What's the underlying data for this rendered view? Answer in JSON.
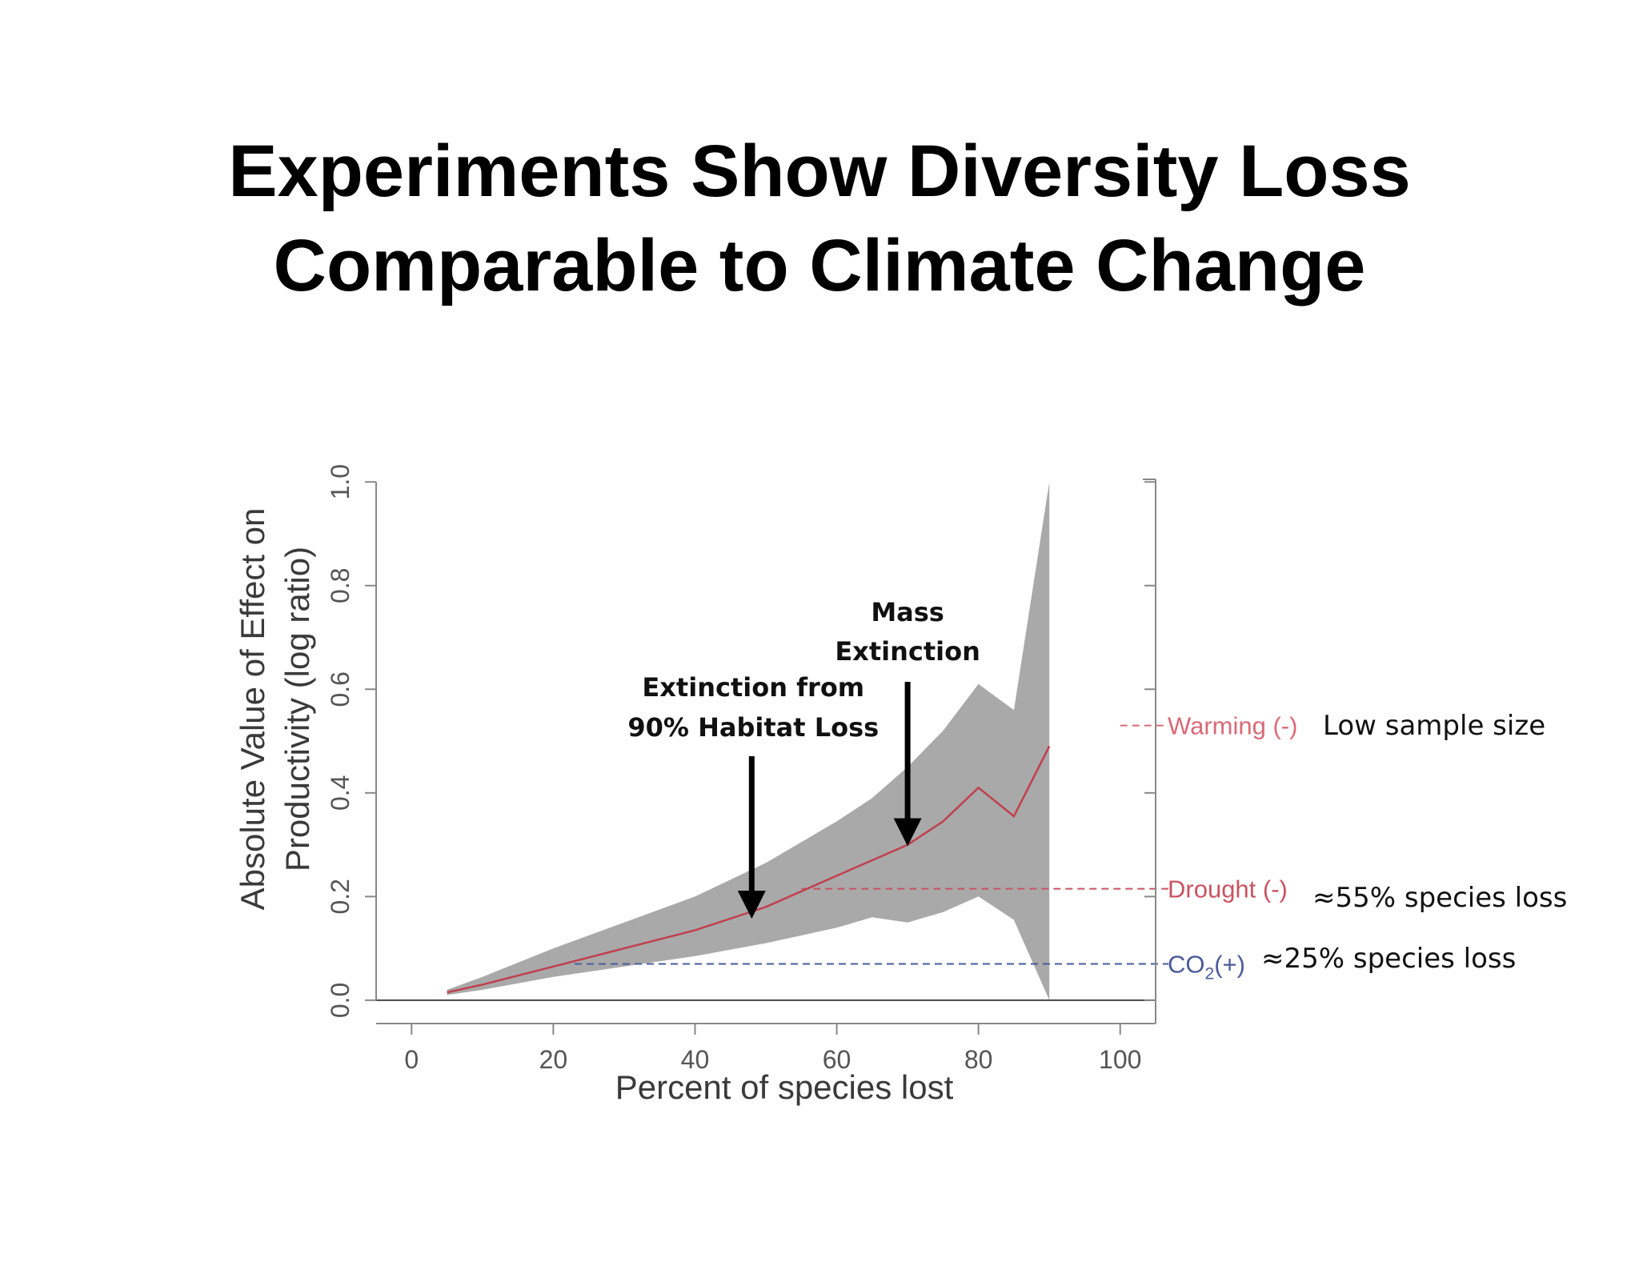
{
  "slide": {
    "title_line1": "Experiments Show Diversity Loss",
    "title_line2": "Comparable to Climate Change"
  },
  "chart_data": {
    "type": "line",
    "xlabel": "Percent of species lost",
    "ylabel_line1": "Absolute Value of Effect on",
    "ylabel_line2": "Productivity (log ratio)",
    "xlim": [
      -5,
      105
    ],
    "ylim": [
      -0.045,
      1.005
    ],
    "x_ticks": [
      0,
      20,
      40,
      60,
      80,
      100
    ],
    "y_ticks": [
      0.0,
      0.2,
      0.4,
      0.6,
      0.8,
      1.0
    ],
    "y_tick_labels": [
      "0.0",
      "0.2",
      "0.4",
      "0.6",
      "0.8",
      "1.0"
    ],
    "grid": false,
    "x": [
      5,
      10,
      20,
      30,
      40,
      50,
      60,
      65,
      70,
      75,
      80,
      85,
      90
    ],
    "mean": [
      0.015,
      0.03,
      0.065,
      0.1,
      0.135,
      0.18,
      0.24,
      0.27,
      0.3,
      0.345,
      0.41,
      0.355,
      0.49
    ],
    "upper": [
      0.02,
      0.045,
      0.1,
      0.15,
      0.2,
      0.265,
      0.345,
      0.39,
      0.45,
      0.52,
      0.61,
      0.56,
      1.0
    ],
    "lower": [
      0.01,
      0.02,
      0.045,
      0.065,
      0.085,
      0.11,
      0.14,
      0.16,
      0.15,
      0.17,
      0.2,
      0.155,
      0.0
    ],
    "line_color": "#c0404f",
    "band_color": "#a9a9a9",
    "reference_lines": [
      {
        "label": "Warming (-)",
        "y": 0.53,
        "color": "#d86a78",
        "x_start": 100
      },
      {
        "label": "Drought (-)",
        "y": 0.215,
        "color": "#c85462",
        "x_start": 55
      },
      {
        "label": "CO",
        "sub": "2",
        "suffix": "(+)",
        "y": 0.07,
        "color": "#4a5a9a",
        "x_start": 23
      }
    ],
    "annotations": [
      {
        "line1": "Extinction from",
        "line2": "90% Habitat Loss",
        "arrow_x": 48,
        "arrow_y": 0.175
      },
      {
        "line1": "Mass",
        "line2": "Extinction",
        "arrow_x": 70,
        "arrow_y": 0.315
      }
    ],
    "notes": [
      "Low sample size",
      "≈55% species loss",
      "≈25% species loss"
    ]
  }
}
